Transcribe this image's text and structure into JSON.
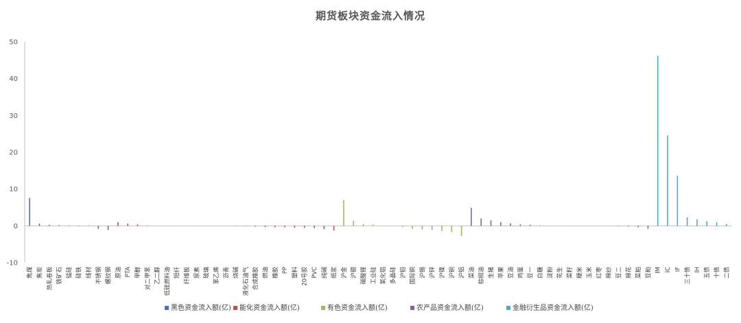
{
  "chart_data": {
    "type": "bar",
    "title": "期货板块资金流入情况",
    "ylim": [
      -10,
      50
    ],
    "yticks": [
      -10,
      0,
      10,
      20,
      30,
      40,
      50
    ],
    "legend_position": "bottom",
    "series": [
      {
        "name": "黑色资金流入额(亿)",
        "color": "#4472C4",
        "categories": [
          "焦煤",
          "焦炭",
          "热轧卷板",
          "铁矿石",
          "锰硅",
          "硅铁",
          "线材",
          "不锈钢",
          "螺纹钢"
        ],
        "values": [
          7.6,
          0.6,
          0.3,
          0.2,
          0.1,
          0.1,
          0.1,
          -0.8,
          -1.1
        ]
      },
      {
        "name": "能化资金流入额(亿)",
        "color": "#C0504D",
        "categories": [
          "原油",
          "PTA",
          "甲醇",
          "对二甲苯",
          "乙二醇",
          "低硫燃料油",
          "短纤",
          "纤维板",
          "尿素",
          "玻璃",
          "苯乙烯",
          "沥青",
          "烧碱",
          "液化石油气",
          "合成橡胶",
          "燃油",
          "橡胶",
          "PP",
          "塑料",
          "20号胶",
          "PVC",
          "纯碱",
          "纸浆"
        ],
        "values": [
          1.0,
          0.6,
          0.4,
          0.1,
          0.0,
          0.0,
          0.0,
          0.0,
          0.0,
          0.0,
          0.0,
          0.0,
          -0.1,
          -0.1,
          -0.2,
          -0.3,
          -0.4,
          -0.4,
          -0.5,
          -0.5,
          -0.6,
          -0.9,
          -1.3
        ]
      },
      {
        "name": "有色资金流入额(亿)",
        "color": "#9BBB59",
        "categories": [
          "沪金",
          "沪银",
          "碳酸锂",
          "工业硅",
          "氧化铝",
          "多晶硅",
          "沪铅",
          "国际铜",
          "沪锡",
          "沪锌",
          "沪镍",
          "沪铜",
          "沪铝"
        ],
        "values": [
          7.0,
          1.4,
          0.5,
          0.4,
          0.0,
          0.0,
          -0.3,
          -0.8,
          -1.0,
          -1.2,
          -1.4,
          -1.7,
          -2.8
        ]
      },
      {
        "name": "农产品资金流入额(亿)",
        "color": "#8064A2",
        "categories": [
          "菜油",
          "棕榈油",
          "生猪",
          "苹果",
          "豆油",
          "鸡蛋",
          "豆一",
          "白糖",
          "淀粉",
          "花生",
          "菜籽",
          "粳米",
          "玉米",
          "红枣",
          "棉纱",
          "豆二",
          "棉花",
          "菜粕",
          "豆粕"
        ],
        "values": [
          4.9,
          2.0,
          1.5,
          1.0,
          0.7,
          0.4,
          0.3,
          0.1,
          0.0,
          0.0,
          0.0,
          0.0,
          0.0,
          0.0,
          0.0,
          -0.1,
          -0.2,
          -0.4,
          -0.8
        ]
      },
      {
        "name": "金融衍生品资金流入额(亿)",
        "color": "#4BACC6",
        "categories": [
          "IM",
          "IC",
          "IF",
          "三十债",
          "IH",
          "五债",
          "十债",
          "二债"
        ],
        "values": [
          46.2,
          24.6,
          13.6,
          2.3,
          1.8,
          1.2,
          1.0,
          0.5
        ]
      }
    ]
  }
}
